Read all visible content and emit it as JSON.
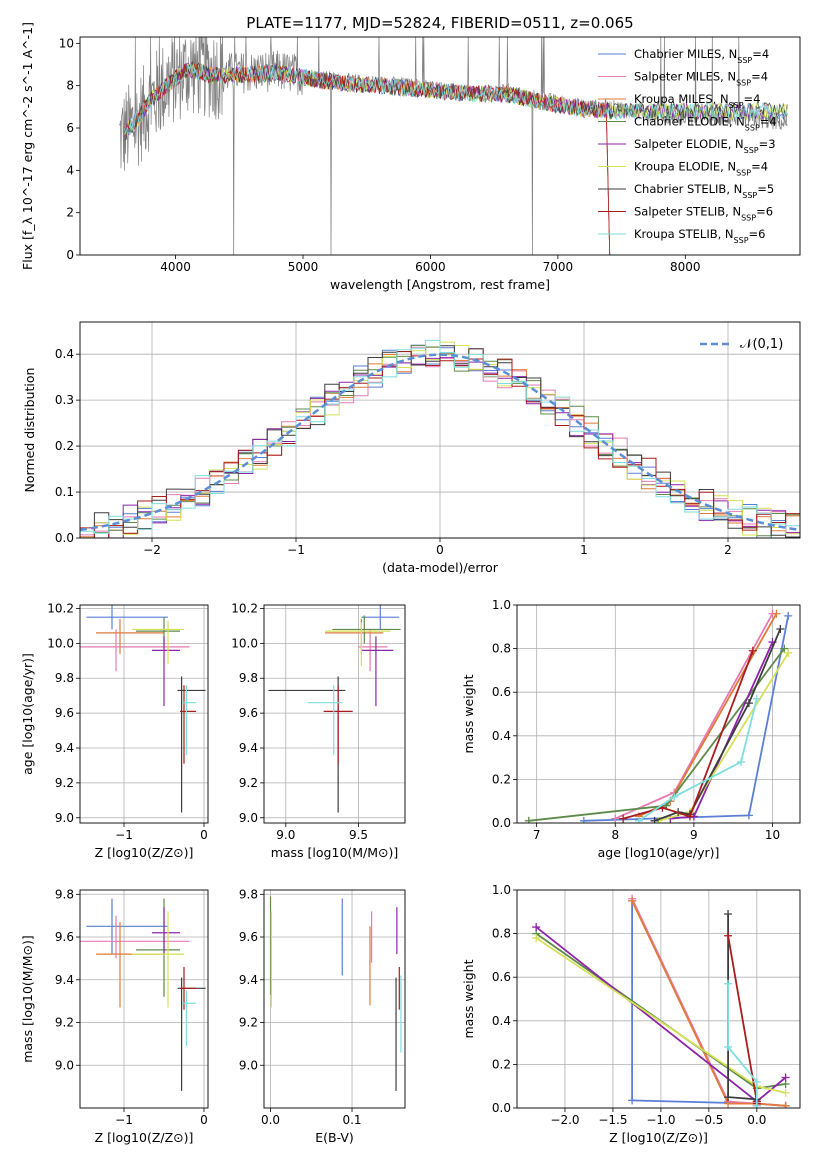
{
  "figure": {
    "title": "PLATE=1177, MJD=52824, FIBERID=0511, z=0.065"
  },
  "model_labels": [
    "Chabrier MILES, N_SSP=4",
    "Salpeter MILES, N_SSP=4",
    "Kroupa MILES, N_SSP=4",
    "Chabrier ELODIE, N_SSP=4",
    "Salpeter ELODIE, N_SSP=3",
    "Kroupa ELODIE, N_SSP=4",
    "Chabrier STELIB, N_SSP=5",
    "Salpeter STELIB, N_SSP=6",
    "Kroupa STELIB, N_SSP=6"
  ],
  "model_colors": [
    "#5a7fd6",
    "#e67ab2",
    "#e07b39",
    "#5e8a4a",
    "#8e24aa",
    "#d4e157",
    "#3d3d3d",
    "#a81c1c",
    "#7fdede"
  ],
  "chart_data": [
    {
      "id": "spectrum",
      "type": "line",
      "xlabel": "wavelength [Angstrom, rest frame]",
      "ylabel": "Flux [f_λ 10^-17 erg cm^-2 s^-1 A^-1]",
      "xlim": [
        3250,
        8900
      ],
      "ylim": [
        0,
        10.3
      ],
      "xticks": [
        4000,
        5000,
        6000,
        7000,
        8000
      ],
      "yticks": [
        0,
        2,
        4,
        6,
        8,
        10
      ],
      "grid": false,
      "legend_position": "top-right",
      "data_color": "#808080",
      "data_continuum": {
        "x": [
          3560,
          3700,
          3800,
          3950,
          4100,
          4300,
          4500,
          4800,
          5000,
          5300,
          5600,
          6000,
          6300,
          6600,
          6900,
          7200,
          7500,
          7800,
          8100,
          8400,
          8700,
          8800
        ],
        "y": [
          5.5,
          6.3,
          7.2,
          8.2,
          8.8,
          8.6,
          8.6,
          8.7,
          8.5,
          8.2,
          8.1,
          7.9,
          7.6,
          7.7,
          7.3,
          7.0,
          6.9,
          6.6,
          6.5,
          6.5,
          6.3,
          6.2
        ]
      },
      "model_continuum": {
        "x": [
          3600,
          3700,
          3800,
          3950,
          4100,
          4300,
          4500,
          4800,
          5000,
          5300,
          5600,
          6000,
          6300,
          6600,
          6900,
          7200,
          7400
        ],
        "y": [
          5.8,
          6.4,
          7.3,
          8.1,
          8.8,
          8.5,
          8.5,
          8.6,
          8.4,
          8.1,
          8.0,
          7.8,
          7.6,
          7.6,
          7.2,
          6.9,
          6.8
        ]
      },
      "model_xmax": [
        7420,
        7420,
        7420,
        8800,
        8800,
        8800,
        8800,
        7420,
        8800
      ]
    },
    {
      "id": "residuals",
      "type": "histogram",
      "xlabel": "(data-model)/error",
      "ylabel": "Normed distribution",
      "xlim": [
        -2.5,
        2.5
      ],
      "ylim": [
        0,
        0.47
      ],
      "xticks": [
        -2,
        -1,
        0,
        1,
        2
      ],
      "yticks": [
        0.0,
        0.1,
        0.2,
        0.3,
        0.4
      ],
      "grid": true,
      "legend_position": "top-right",
      "reference_curve": {
        "label": "𝒩(0,1)",
        "mean": 0,
        "sigma": 1,
        "amplitude": 0.3989,
        "color": "#5a8fd6"
      },
      "bin_edges_start": -2.5,
      "bin_width": 0.1,
      "bins": 50
    },
    {
      "id": "age_vs_Z",
      "type": "errorbar",
      "xlabel": "Z [log10(Z/Z⊙)]",
      "ylabel": "age  [log10(age/yr)]",
      "xlim": [
        -1.55,
        0.05
      ],
      "ylim": [
        8.97,
        10.22
      ],
      "xticks": [
        -1,
        0
      ],
      "yticks": [
        9.0,
        9.2,
        9.4,
        9.6,
        9.8,
        10.0,
        10.2
      ],
      "grid": true,
      "points": [
        {
          "x": -1.15,
          "xerr": [
            0.32,
            0.7
          ],
          "y": 10.15,
          "yerr": [
            0.07,
            0.07
          ]
        },
        {
          "x": -1.1,
          "xerr": [
            0.5,
            0.92
          ],
          "y": 9.98,
          "yerr": [
            0.14,
            0.1
          ]
        },
        {
          "x": -1.05,
          "xerr": [
            0.3,
            0.55
          ],
          "y": 10.06,
          "yerr": [
            0.12,
            0.08
          ]
        },
        {
          "x": -0.5,
          "xerr": [
            0.35,
            0.2
          ],
          "y": 10.07,
          "yerr": [
            0.08,
            0.08
          ]
        },
        {
          "x": -0.5,
          "xerr": [
            0.15,
            0.2
          ],
          "y": 9.96,
          "yerr": [
            0.32,
            0.08
          ]
        },
        {
          "x": -0.45,
          "xerr": [
            0.45,
            0.2
          ],
          "y": 10.08,
          "yerr": [
            0.2,
            0.05
          ]
        },
        {
          "x": -0.28,
          "xerr": [
            0.05,
            0.3
          ],
          "y": 9.73,
          "yerr": [
            0.7,
            0.08
          ]
        },
        {
          "x": -0.25,
          "xerr": [
            0.05,
            0.15
          ],
          "y": 9.61,
          "yerr": [
            0.3,
            0.15
          ]
        },
        {
          "x": -0.22,
          "xerr": [
            0.05,
            0.12
          ],
          "y": 9.66,
          "yerr": [
            0.3,
            0.1
          ]
        }
      ]
    },
    {
      "id": "age_vs_mass",
      "type": "errorbar",
      "xlabel": "mass [log10(M/M⊙)]",
      "ylabel": "",
      "xlim": [
        8.85,
        9.82
      ],
      "ylim": [
        8.97,
        10.22
      ],
      "xticks": [
        9.0,
        9.5
      ],
      "yticks": [
        9.0,
        9.2,
        9.4,
        9.6,
        9.8,
        10.0,
        10.2
      ],
      "grid": true,
      "points": [
        {
          "x": 9.65,
          "xerr": [
            0.13,
            0.13
          ],
          "y": 10.15,
          "yerr": [
            0.07,
            0.07
          ]
        },
        {
          "x": 9.58,
          "xerr": [
            0.08,
            0.12
          ],
          "y": 9.98,
          "yerr": [
            0.14,
            0.1
          ]
        },
        {
          "x": 9.52,
          "xerr": [
            0.25,
            0.15
          ],
          "y": 10.06,
          "yerr": [
            0.12,
            0.08
          ]
        },
        {
          "x": 9.54,
          "xerr": [
            0.22,
            0.25
          ],
          "y": 10.08,
          "yerr": [
            0.08,
            0.08
          ]
        },
        {
          "x": 9.62,
          "xerr": [
            0.1,
            0.12
          ],
          "y": 9.96,
          "yerr": [
            0.32,
            0.08
          ]
        },
        {
          "x": 9.52,
          "xerr": [
            0.25,
            0.2
          ],
          "y": 10.07,
          "yerr": [
            0.2,
            0.05
          ]
        },
        {
          "x": 9.36,
          "xerr": [
            0.48,
            0.05
          ],
          "y": 9.73,
          "yerr": [
            0.7,
            0.08
          ]
        },
        {
          "x": 9.36,
          "xerr": [
            0.1,
            0.1
          ],
          "y": 9.61,
          "yerr": [
            0.3,
            0.15
          ]
        },
        {
          "x": 9.33,
          "xerr": [
            0.18,
            0.06
          ],
          "y": 9.66,
          "yerr": [
            0.3,
            0.1
          ]
        }
      ]
    },
    {
      "id": "weight_vs_age",
      "type": "line",
      "xlabel": "age  [log10(age/yr)]",
      "ylabel": "mass weight",
      "xlim": [
        6.75,
        10.35
      ],
      "ylim": [
        0,
        1
      ],
      "xticks": [
        7,
        8,
        9,
        10
      ],
      "yticks": [
        0.0,
        0.2,
        0.4,
        0.6,
        0.8,
        1.0
      ],
      "grid": true,
      "series": [
        {
          "x": [
            7.6,
            9.7,
            10.2
          ],
          "y": [
            0.01,
            0.035,
            0.95
          ]
        },
        {
          "x": [
            8.0,
            8.75,
            10.0
          ],
          "y": [
            0.02,
            0.14,
            0.96
          ]
        },
        {
          "x": [
            8.3,
            8.7,
            10.05
          ],
          "y": [
            0.03,
            0.1,
            0.96
          ]
        },
        {
          "x": [
            6.9,
            8.65,
            10.15
          ],
          "y": [
            0.01,
            0.08,
            0.8
          ]
        },
        {
          "x": [
            8.7,
            9.0,
            10.0
          ],
          "y": [
            0.02,
            0.03,
            0.83
          ]
        },
        {
          "x": [
            8.55,
            8.95,
            10.2
          ],
          "y": [
            0.01,
            0.05,
            0.78
          ]
        },
        {
          "x": [
            8.5,
            8.8,
            8.95,
            9.7,
            10.1
          ],
          "y": [
            0.01,
            0.05,
            0.04,
            0.55,
            0.89
          ]
        },
        {
          "x": [
            8.1,
            8.6,
            8.95,
            9.75
          ],
          "y": [
            0.02,
            0.07,
            0.03,
            0.79
          ]
        },
        {
          "x": [
            8.3,
            8.75,
            9.6,
            9.8
          ],
          "y": [
            0.01,
            0.12,
            0.28,
            0.57
          ]
        }
      ]
    },
    {
      "id": "mass_vs_Z",
      "type": "errorbar",
      "xlabel": "Z [log10(Z/Z⊙)]",
      "ylabel": "mass [log10(M/M⊙)]",
      "xlim": [
        -1.55,
        0.05
      ],
      "ylim": [
        8.8,
        9.82
      ],
      "xticks": [
        -1,
        0
      ],
      "yticks": [
        9.0,
        9.2,
        9.4,
        9.6,
        9.8
      ],
      "grid": true,
      "points": [
        {
          "x": -1.15,
          "xerr": [
            0.32,
            0.7
          ],
          "y": 9.65,
          "yerr": [
            0.13,
            0.13
          ]
        },
        {
          "x": -1.1,
          "xerr": [
            0.5,
            0.92
          ],
          "y": 9.58,
          "yerr": [
            0.08,
            0.12
          ]
        },
        {
          "x": -1.05,
          "xerr": [
            0.3,
            0.55
          ],
          "y": 9.52,
          "yerr": [
            0.25,
            0.15
          ]
        },
        {
          "x": -0.5,
          "xerr": [
            0.35,
            0.2
          ],
          "y": 9.54,
          "yerr": [
            0.22,
            0.24
          ]
        },
        {
          "x": -0.5,
          "xerr": [
            0.15,
            0.2
          ],
          "y": 9.62,
          "yerr": [
            0.1,
            0.12
          ]
        },
        {
          "x": -0.45,
          "xerr": [
            0.45,
            0.2
          ],
          "y": 9.52,
          "yerr": [
            0.25,
            0.2
          ]
        },
        {
          "x": -0.28,
          "xerr": [
            0.05,
            0.3
          ],
          "y": 9.36,
          "yerr": [
            0.48,
            0.05
          ]
        },
        {
          "x": -0.25,
          "xerr": [
            0.05,
            0.15
          ],
          "y": 9.36,
          "yerr": [
            0.1,
            0.1
          ]
        },
        {
          "x": -0.22,
          "xerr": [
            0.05,
            0.12
          ],
          "y": 9.29,
          "yerr": [
            0.2,
            0.06
          ]
        }
      ]
    },
    {
      "id": "mass_vs_ebv",
      "type": "errorbar",
      "xlabel": "E(B-V)",
      "ylabel": "",
      "xlim": [
        -0.008,
        0.165
      ],
      "ylim": [
        8.8,
        9.82
      ],
      "xticks": [
        0.0,
        0.1
      ],
      "yticks": [
        9.0,
        9.2,
        9.4,
        9.6,
        9.8
      ],
      "grid": true,
      "points": [
        {
          "x": 0.088,
          "xerr": [
            0,
            0
          ],
          "y": 9.6,
          "yerr": [
            0.18,
            0.18
          ]
        },
        {
          "x": 0.124,
          "xerr": [
            0,
            0
          ],
          "y": 9.56,
          "yerr": [
            0.08,
            0.16
          ]
        },
        {
          "x": 0.122,
          "xerr": [
            0,
            0
          ],
          "y": 9.5,
          "yerr": [
            0.22,
            0.15
          ]
        },
        {
          "x": 0.0,
          "xerr": [
            0,
            0
          ],
          "y": 9.55,
          "yerr": [
            0.22,
            0.24
          ]
        },
        {
          "x": 0.155,
          "xerr": [
            0,
            0
          ],
          "y": 9.62,
          "yerr": [
            0.1,
            0.12
          ]
        },
        {
          "x": 0.001,
          "xerr": [
            0,
            0
          ],
          "y": 9.52,
          "yerr": [
            0.25,
            0.2
          ]
        },
        {
          "x": 0.154,
          "xerr": [
            0,
            0
          ],
          "y": 9.36,
          "yerr": [
            0.48,
            0.05
          ]
        },
        {
          "x": 0.158,
          "xerr": [
            0,
            0
          ],
          "y": 9.36,
          "yerr": [
            0.1,
            0.1
          ]
        },
        {
          "x": 0.16,
          "xerr": [
            0,
            0
          ],
          "y": 9.26,
          "yerr": [
            0.2,
            0.16
          ]
        }
      ]
    },
    {
      "id": "weight_vs_Z",
      "type": "line",
      "xlabel": "Z [log10(Z/Z⊙)]",
      "ylabel": "mass weight",
      "xlim": [
        -2.5,
        0.45
      ],
      "ylim": [
        0,
        1
      ],
      "xticks": [
        -2.0,
        -1.5,
        -1.0,
        -0.5,
        0.0
      ],
      "yticks": [
        0.0,
        0.2,
        0.4,
        0.6,
        0.8,
        1.0
      ],
      "grid": true,
      "series": [
        {
          "x": [
            -1.3,
            -1.3,
            0.0,
            0.3
          ],
          "y": [
            0.95,
            0.035,
            0.02,
            0.01
          ]
        },
        {
          "x": [
            -1.3,
            -0.3,
            0.0,
            0.3
          ],
          "y": [
            0.96,
            0.03,
            0.02,
            0.01
          ]
        },
        {
          "x": [
            -1.3,
            -0.3,
            0.0,
            0.3
          ],
          "y": [
            0.95,
            0.02,
            0.02,
            0.01
          ]
        },
        {
          "x": [
            -2.3,
            0.0,
            0.3
          ],
          "y": [
            0.8,
            0.09,
            0.11
          ]
        },
        {
          "x": [
            -2.3,
            0.0,
            0.3
          ],
          "y": [
            0.83,
            0.03,
            0.14
          ]
        },
        {
          "x": [
            -2.3,
            0.0,
            0.3
          ],
          "y": [
            0.78,
            0.1,
            0.07
          ]
        },
        {
          "x": [
            -0.3,
            -0.3,
            0.0,
            0.0
          ],
          "y": [
            0.89,
            0.05,
            0.04,
            0.01
          ]
        },
        {
          "x": [
            -0.3,
            0.0,
            0.0
          ],
          "y": [
            0.79,
            0.03,
            0.02
          ]
        },
        {
          "x": [
            -0.3,
            -0.3,
            0.0,
            0.0
          ],
          "y": [
            0.57,
            0.28,
            0.12,
            0.01
          ]
        }
      ]
    }
  ]
}
